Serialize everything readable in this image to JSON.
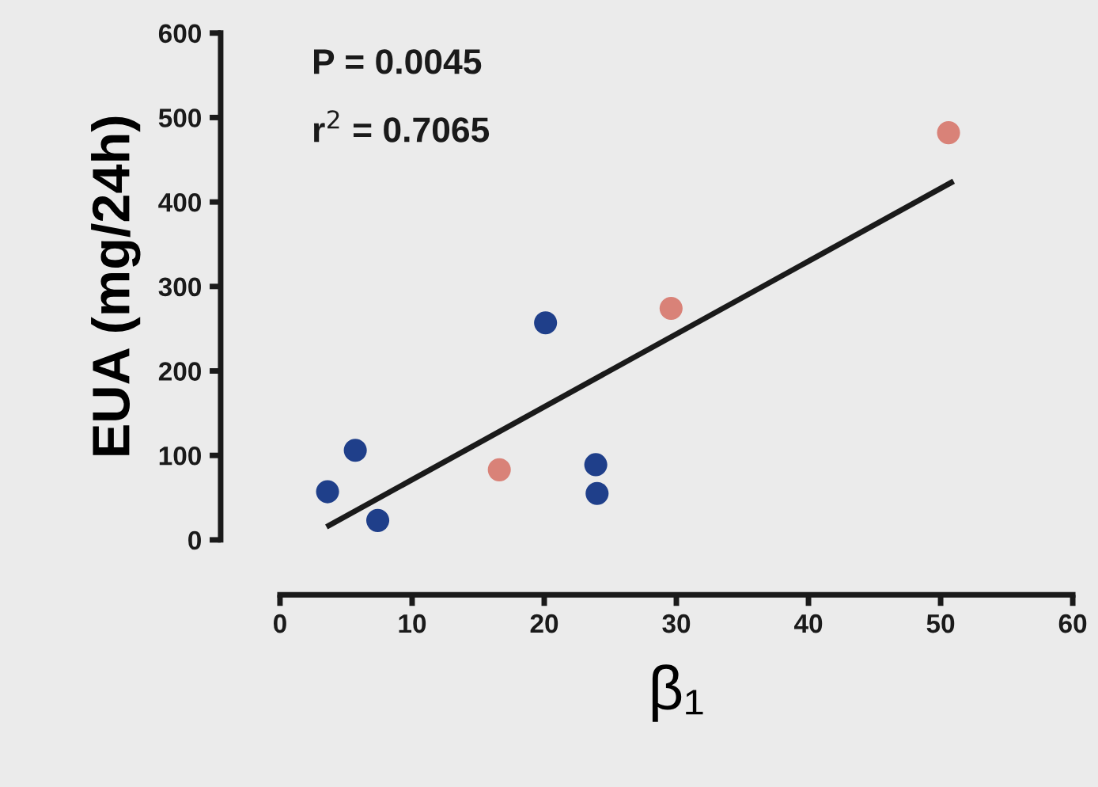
{
  "chart_data": {
    "type": "scatter",
    "xlabel": "β₁",
    "ylabel": "EUA (mg/24h)",
    "xlim": [
      0,
      60
    ],
    "xticks": [
      0,
      10,
      20,
      30,
      40,
      50,
      60
    ],
    "ylim": [
      0,
      600
    ],
    "yticks": [
      0,
      100,
      200,
      300,
      400,
      500,
      600
    ],
    "grid": false,
    "legend": false,
    "annotations": [
      "P = 0.0045",
      "r$^{2}$ = 0.7065"
    ],
    "series": [
      {
        "marker": "circle",
        "color": "#1f3f8a",
        "x": [
          3.6,
          5.7,
          7.4,
          20.1,
          23.9,
          24.0
        ],
        "values": [
          57,
          106,
          23,
          257,
          89,
          55
        ]
      },
      {
        "marker": "circle",
        "color": "#d98278",
        "x": [
          16.6,
          29.6,
          50.6
        ],
        "values": [
          83,
          274,
          482
        ]
      },
      {
        "type": "line",
        "marker": "none",
        "color": "#1a1a1a",
        "x": [
          3.7,
          50.8
        ],
        "values": [
          17,
          423
        ]
      }
    ]
  }
}
